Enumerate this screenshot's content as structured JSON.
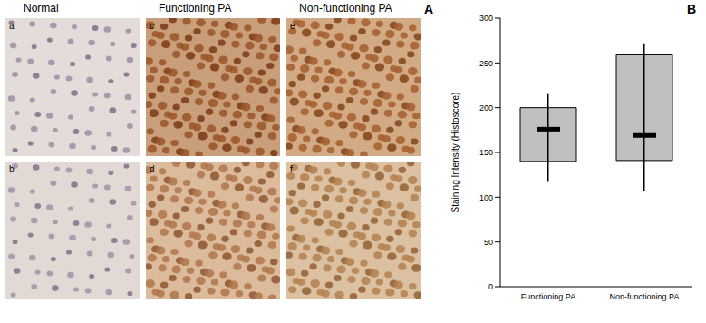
{
  "panel_a": {
    "label": "A",
    "columns": [
      "Normal",
      "Functioning PA",
      "Non-functioning PA"
    ],
    "panel_letters": [
      [
        "a",
        "b"
      ],
      [
        "c",
        "d"
      ],
      [
        "e",
        "f"
      ]
    ]
  },
  "chart_data": {
    "type": "box",
    "panel_label": "B",
    "y_label": "Staining Intensity (Histoscore)",
    "categories": [
      "Functioning PA",
      "Non-functioning PA"
    ],
    "min": [
      117,
      107
    ],
    "q1": [
      140,
      141
    ],
    "median": [
      176,
      169
    ],
    "q3": [
      200,
      259
    ],
    "max": [
      215,
      272
    ],
    "color": "#c0c0c0",
    "ylim": [
      0,
      300
    ],
    "yticks": [
      0,
      50,
      100,
      150,
      200,
      250,
      300
    ],
    "grid": false
  }
}
